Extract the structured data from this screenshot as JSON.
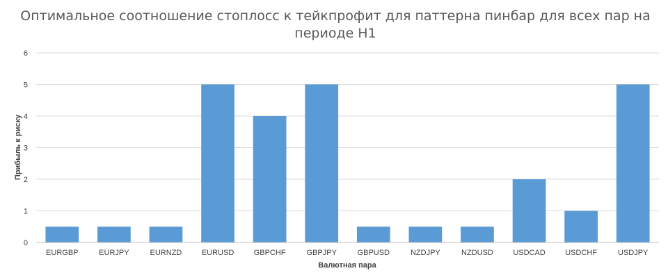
{
  "chart_data": {
    "type": "bar",
    "title_lines": [
      "Оптимальное соотношение стоплосс к тейкпрофит для паттерна пинбар для всех пар на",
      "периоде H1"
    ],
    "xlabel": "Валютная пара",
    "ylabel": "Прибыль к риску",
    "categories": [
      "EURGBP",
      "EURJPY",
      "EURNZD",
      "EURUSD",
      "GBPCHF",
      "GBPJPY",
      "GBPUSD",
      "NZDJPY",
      "NZDUSD",
      "USDCAD",
      "USDCHF",
      "USDJPY"
    ],
    "values": [
      0.5,
      0.5,
      0.5,
      5,
      4,
      5,
      0.5,
      0.5,
      0.5,
      2,
      1,
      5
    ],
    "ylim": [
      0,
      6
    ],
    "yticks": [
      "0",
      "1",
      "2",
      "3",
      "4",
      "5",
      "6"
    ],
    "grid": true,
    "legend": "none",
    "bar_color": "#5b9bd5"
  }
}
